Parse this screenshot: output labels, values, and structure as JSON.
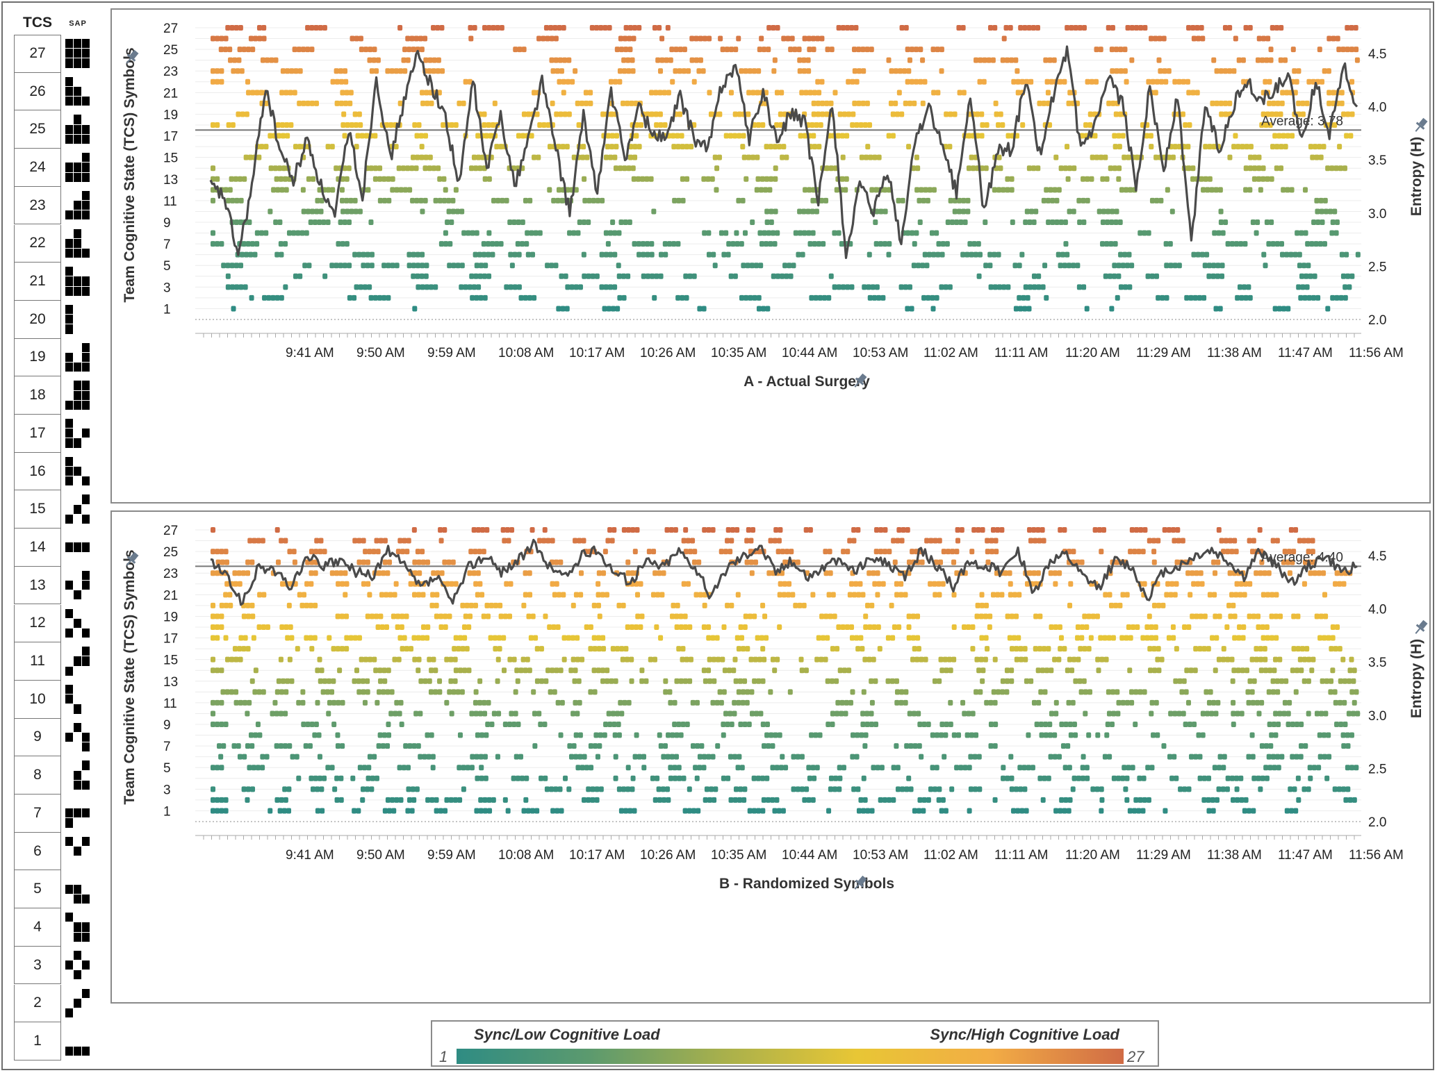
{
  "sidebar": {
    "title": "TCS",
    "pattern_header": "SAP",
    "states": [
      {
        "id": "27",
        "cells": [
          [
            1,
            1,
            1
          ],
          [
            1,
            1,
            1
          ],
          [
            1,
            1,
            1
          ]
        ]
      },
      {
        "id": "26",
        "cells": [
          [
            1,
            0,
            0
          ],
          [
            1,
            1,
            0
          ],
          [
            1,
            1,
            1
          ]
        ]
      },
      {
        "id": "25",
        "cells": [
          [
            0,
            1,
            0
          ],
          [
            1,
            1,
            1
          ],
          [
            1,
            1,
            1
          ]
        ]
      },
      {
        "id": "24",
        "cells": [
          [
            0,
            0,
            1
          ],
          [
            1,
            1,
            1
          ],
          [
            1,
            1,
            1
          ]
        ]
      },
      {
        "id": "23",
        "cells": [
          [
            0,
            0,
            1
          ],
          [
            0,
            1,
            1
          ],
          [
            1,
            1,
            1
          ]
        ]
      },
      {
        "id": "22",
        "cells": [
          [
            0,
            1,
            0
          ],
          [
            1,
            1,
            0
          ],
          [
            1,
            1,
            1
          ]
        ]
      },
      {
        "id": "21",
        "cells": [
          [
            1,
            0,
            0
          ],
          [
            1,
            1,
            1
          ],
          [
            1,
            1,
            1
          ]
        ]
      },
      {
        "id": "20",
        "cells": [
          [
            1,
            0,
            0
          ],
          [
            1,
            0,
            0
          ],
          [
            1,
            0,
            0
          ]
        ]
      },
      {
        "id": "19",
        "cells": [
          [
            0,
            0,
            1
          ],
          [
            1,
            0,
            1
          ],
          [
            1,
            1,
            1
          ]
        ]
      },
      {
        "id": "18",
        "cells": [
          [
            0,
            1,
            1
          ],
          [
            0,
            1,
            1
          ],
          [
            1,
            1,
            1
          ]
        ]
      },
      {
        "id": "17",
        "cells": [
          [
            1,
            0,
            0
          ],
          [
            1,
            0,
            1
          ],
          [
            1,
            1,
            0
          ]
        ]
      },
      {
        "id": "16",
        "cells": [
          [
            1,
            0,
            0
          ],
          [
            1,
            1,
            0
          ],
          [
            1,
            0,
            1
          ]
        ]
      },
      {
        "id": "15",
        "cells": [
          [
            0,
            0,
            1
          ],
          [
            0,
            1,
            0
          ],
          [
            1,
            0,
            1
          ]
        ]
      },
      {
        "id": "14",
        "cells": [
          [
            0,
            0,
            0
          ],
          [
            1,
            1,
            1
          ],
          [
            0,
            0,
            0
          ]
        ]
      },
      {
        "id": "13",
        "cells": [
          [
            0,
            0,
            1
          ],
          [
            1,
            0,
            1
          ],
          [
            0,
            1,
            0
          ]
        ]
      },
      {
        "id": "12",
        "cells": [
          [
            1,
            0,
            0
          ],
          [
            0,
            1,
            0
          ],
          [
            1,
            0,
            1
          ]
        ]
      },
      {
        "id": "11",
        "cells": [
          [
            0,
            0,
            1
          ],
          [
            0,
            1,
            1
          ],
          [
            1,
            0,
            0
          ]
        ]
      },
      {
        "id": "10",
        "cells": [
          [
            1,
            0,
            0
          ],
          [
            1,
            0,
            0
          ],
          [
            0,
            1,
            0
          ]
        ]
      },
      {
        "id": "9",
        "cells": [
          [
            0,
            1,
            0
          ],
          [
            1,
            0,
            1
          ],
          [
            0,
            0,
            1
          ]
        ]
      },
      {
        "id": "8",
        "cells": [
          [
            0,
            0,
            1
          ],
          [
            0,
            1,
            0
          ],
          [
            0,
            1,
            1
          ]
        ]
      },
      {
        "id": "7",
        "cells": [
          [
            0,
            0,
            0
          ],
          [
            1,
            1,
            1
          ],
          [
            1,
            0,
            0
          ]
        ]
      },
      {
        "id": "6",
        "cells": [
          [
            1,
            0,
            1
          ],
          [
            0,
            1,
            0
          ],
          [
            0,
            0,
            0
          ]
        ]
      },
      {
        "id": "5",
        "cells": [
          [
            0,
            0,
            0
          ],
          [
            1,
            1,
            0
          ],
          [
            0,
            1,
            1
          ]
        ]
      },
      {
        "id": "4",
        "cells": [
          [
            1,
            0,
            0
          ],
          [
            0,
            1,
            1
          ],
          [
            0,
            1,
            1
          ]
        ]
      },
      {
        "id": "3",
        "cells": [
          [
            0,
            1,
            0
          ],
          [
            1,
            0,
            1
          ],
          [
            0,
            1,
            0
          ]
        ]
      },
      {
        "id": "2",
        "cells": [
          [
            0,
            0,
            1
          ],
          [
            0,
            1,
            0
          ],
          [
            1,
            0,
            0
          ]
        ]
      },
      {
        "id": "1",
        "cells": [
          [
            0,
            0,
            0
          ],
          [
            0,
            0,
            0
          ],
          [
            1,
            1,
            1
          ]
        ]
      }
    ]
  },
  "chart_data": [
    {
      "type": "scatter",
      "title": "A - Actual Surgery",
      "ylabel": "Team Cognitive State (TCS) Symbols",
      "y2label": "Entropy (H)",
      "x_tick_labels": [
        "9:41 AM",
        "9:50 AM",
        "9:59 AM",
        "10:08 AM",
        "10:17 AM",
        "10:26 AM",
        "10:35 AM",
        "10:44 AM",
        "10:53 AM",
        "11:02 AM",
        "11:11 AM",
        "11:20 AM",
        "11:29 AM",
        "11:38 AM",
        "11:47 AM",
        "11:56 AM"
      ],
      "y_ticks": [
        1,
        3,
        5,
        7,
        9,
        11,
        13,
        15,
        17,
        19,
        21,
        23,
        25,
        27
      ],
      "y_range": [
        0,
        28
      ],
      "y2_ticks": [
        2.0,
        2.5,
        3.0,
        3.5,
        4.0,
        4.5
      ],
      "y2_range": [
        1.95,
        4.9
      ],
      "average": {
        "label": "Average: 3.78",
        "value": 3.78
      },
      "pin_icon": "pin-icon",
      "entropy_line": [
        3.25,
        3.15,
        2.6,
        3.25,
        4.2,
        3.6,
        3.3,
        3.7,
        3.25,
        2.95,
        3.8,
        3.15,
        4.3,
        3.5,
        4.05,
        4.5,
        4.2,
        3.9,
        3.25,
        4.25,
        3.4,
        3.95,
        3.25,
        3.7,
        4.25,
        3.6,
        3.0,
        3.9,
        3.2,
        4.15,
        3.5,
        4.0,
        3.75,
        3.7,
        4.1,
        3.7,
        3.6,
        4.2,
        4.4,
        3.7,
        4.15,
        3.65,
        3.95,
        3.85,
        3.1,
        4.05,
        2.6,
        3.25,
        3.0,
        3.4,
        2.7,
        3.7,
        4.0,
        3.6,
        3.2,
        4.1,
        3.0,
        3.6,
        3.6,
        4.25,
        3.55,
        4.1,
        4.5,
        3.6,
        3.8,
        4.25,
        4.05,
        3.25,
        4.2,
        3.4,
        4.1,
        2.7,
        4.05,
        3.6,
        4.0,
        4.25,
        4.05,
        4.15,
        4.3,
        3.65,
        4.25,
        3.75,
        4.4,
        4.0
      ]
    },
    {
      "type": "scatter",
      "title": "B - Randomized Symbols",
      "ylabel": "Team Cognitive State (TCS) Symbols",
      "y2label": "Entropy (H)",
      "x_tick_labels": [
        "9:41 AM",
        "9:50 AM",
        "9:59 AM",
        "10:08 AM",
        "10:17 AM",
        "10:26 AM",
        "10:35 AM",
        "10:44 AM",
        "10:53 AM",
        "11:02 AM",
        "11:11 AM",
        "11:20 AM",
        "11:29 AM",
        "11:38 AM",
        "11:47 AM",
        "11:56 AM"
      ],
      "y_ticks": [
        1,
        3,
        5,
        7,
        9,
        11,
        13,
        15,
        17,
        19,
        21,
        23,
        25,
        27
      ],
      "y_range": [
        0,
        28
      ],
      "y2_ticks": [
        2.0,
        2.5,
        3.0,
        3.5,
        4.0,
        4.5
      ],
      "y2_range": [
        1.95,
        4.9
      ],
      "average": {
        "label": "Average: 4.40",
        "value": 4.4
      },
      "pin_icon": "pin-icon",
      "entropy_line": [
        4.45,
        4.3,
        4.05,
        4.4,
        4.35,
        4.2,
        4.5,
        4.4,
        4.45,
        4.35,
        4.3,
        4.55,
        4.4,
        4.2,
        4.3,
        4.05,
        4.4,
        4.5,
        4.35,
        4.45,
        4.6,
        4.4,
        4.3,
        4.5,
        4.55,
        4.35,
        4.25,
        4.45,
        4.4,
        4.55,
        4.4,
        4.1,
        4.4,
        4.5,
        4.6,
        4.35,
        4.45,
        4.3,
        4.4,
        4.45,
        4.35,
        4.5,
        4.4,
        4.3,
        4.55,
        4.4,
        4.2,
        4.45,
        4.4,
        4.35,
        4.55,
        4.15,
        4.45,
        4.5,
        4.3,
        4.2,
        4.45,
        4.4,
        4.1,
        4.35,
        4.4,
        4.5,
        4.55,
        4.45,
        4.3,
        4.55,
        4.4,
        4.25,
        4.4,
        4.5,
        4.35,
        4.4
      ]
    }
  ],
  "legend": {
    "left_label": "Sync/Low Cognitive Load",
    "right_label": "Sync/High Cognitive Load",
    "min": "1",
    "max": "27",
    "color_low": "#2f8c83",
    "color_high": "#d06b45"
  }
}
